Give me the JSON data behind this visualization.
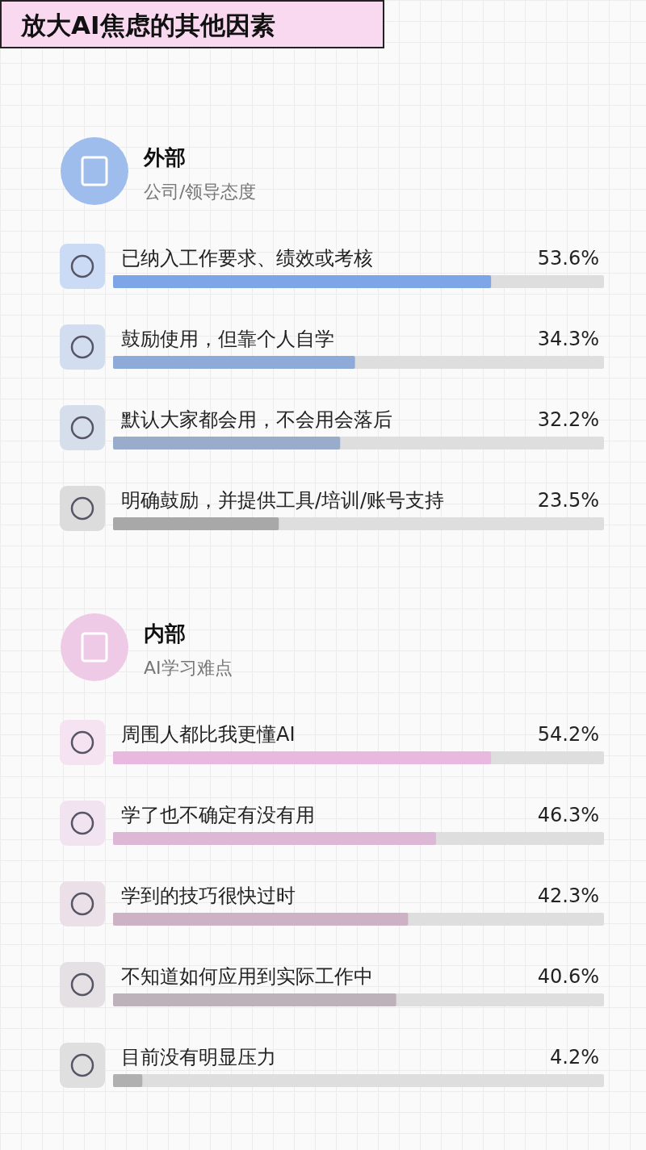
{
  "chart_data": [
    {
      "type": "other",
      "title": "放大AI焦虑的其他因素"
    },
    {
      "type": "bar",
      "orientation": "horizontal",
      "title": "外部",
      "subtitle": "公司/领导态度",
      "value_labels": [
        "53.6%",
        "34.3%",
        "32.2%",
        "23.5%"
      ],
      "categories": [
        "已纳入工作要求、绩效或考核",
        "鼓励使用，但靠个人自学",
        "默认大家都会用，不会用会落后",
        "明确鼓励，并提供工具/培训/账号支持"
      ],
      "values": [
        53.6,
        34.3,
        32.2,
        23.5
      ],
      "colors": [
        "#7ea6e6",
        "#8eaad8",
        "#9aaccc",
        "#a8a8a8"
      ]
    },
    {
      "type": "bar",
      "orientation": "horizontal",
      "title": "内部",
      "subtitle": "AI学习难点",
      "value_labels": [
        "54.2%",
        "46.3%",
        "42.3%",
        "40.6%",
        "4.2%"
      ],
      "categories": [
        "周围人都比我更懂AI",
        "学了也不确定有没有用",
        "学到的技巧很快过时",
        "不知道如何应用到实际工作中",
        "目前没有明显压力"
      ],
      "values": [
        54.2,
        46.3,
        42.3,
        40.6,
        4.2
      ],
      "colors": [
        "#e8b8de",
        "#dcb8d6",
        "#ccb2c4",
        "#beb2ba",
        "#b0b0b0"
      ]
    }
  ]
}
